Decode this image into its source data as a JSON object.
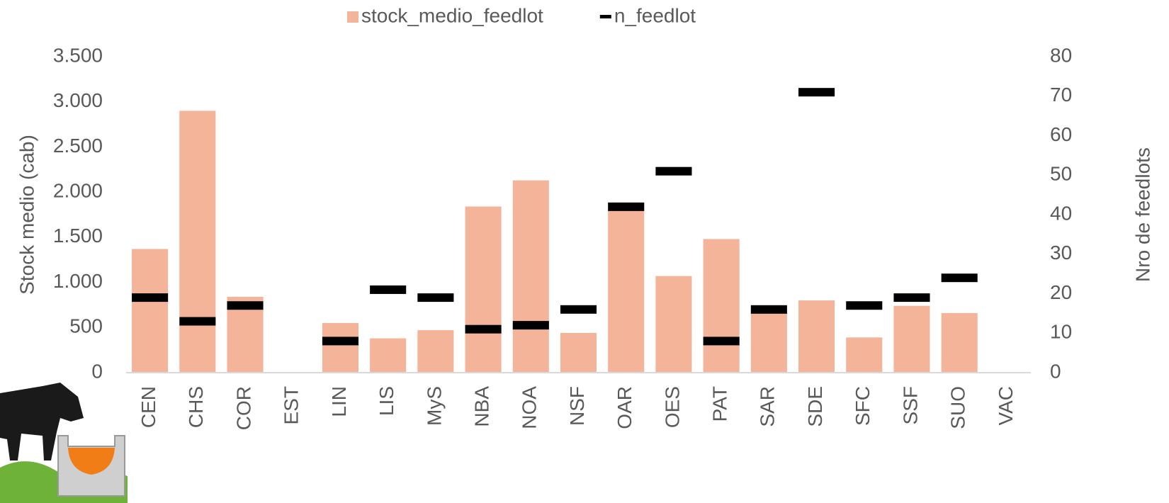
{
  "chart_data": {
    "type": "bar",
    "categories": [
      "CEN",
      "CHS",
      "COR",
      "EST",
      "LIN",
      "LIS",
      "MyS",
      "NBA",
      "NOA",
      "NSF",
      "OAR",
      "OES",
      "PAT",
      "SAR",
      "SDE",
      "SFC",
      "SSF",
      "SUO",
      "VAC"
    ],
    "series": [
      {
        "name": "stock_medio_feedlot",
        "color": "#f4b49a",
        "values": [
          1370,
          2900,
          840,
          null,
          550,
          380,
          470,
          1840,
          2130,
          440,
          1810,
          1070,
          1480,
          680,
          800,
          390,
          740,
          660,
          null
        ]
      },
      {
        "name": "n_feedlot",
        "color": "#000000",
        "axis": "y2",
        "marker": "dash",
        "values": [
          19,
          13,
          17,
          null,
          8,
          21,
          19,
          11,
          12,
          16,
          42,
          51,
          8,
          16,
          71,
          17,
          19,
          24,
          null
        ]
      }
    ],
    "ylabel": "Stock medio (cab)",
    "y2label": "Nro de feedlots",
    "ylim": [
      0,
      3500
    ],
    "yticks": [
      0,
      500,
      {
        "value": 1000,
        "label": "1.000"
      },
      {
        "value": 1500,
        "label": "1.500"
      },
      {
        "value": 2000,
        "label": "2.000"
      },
      {
        "value": 2500,
        "label": "2.500"
      },
      {
        "value": 3000,
        "label": "3.000"
      },
      {
        "value": 3500,
        "label": "3.500"
      }
    ],
    "y2lim": [
      0,
      80
    ],
    "y2ticks": [
      0,
      10,
      20,
      30,
      40,
      50,
      60,
      70,
      80
    ],
    "grid": false,
    "legend": "top"
  }
}
